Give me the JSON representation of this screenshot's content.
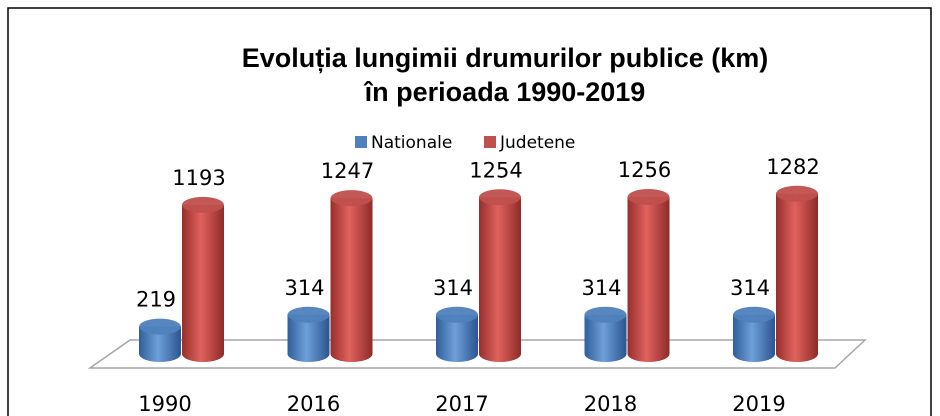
{
  "chart_data": {
    "type": "bar3d",
    "title": [
      "Evoluția lungimii drumurilor publice (km)",
      "în  perioada 1990-2019"
    ],
    "categories": [
      "1990",
      "2016",
      "2017",
      "2018",
      "2019"
    ],
    "series": [
      {
        "name": "Nationale",
        "color": "#4f81bd",
        "values": [
          219,
          314,
          314,
          314,
          314
        ]
      },
      {
        "name": "Judetene",
        "color": "#c0504d",
        "values": [
          1193,
          1247,
          1254,
          1256,
          1282
        ]
      }
    ],
    "legend": "top"
  }
}
